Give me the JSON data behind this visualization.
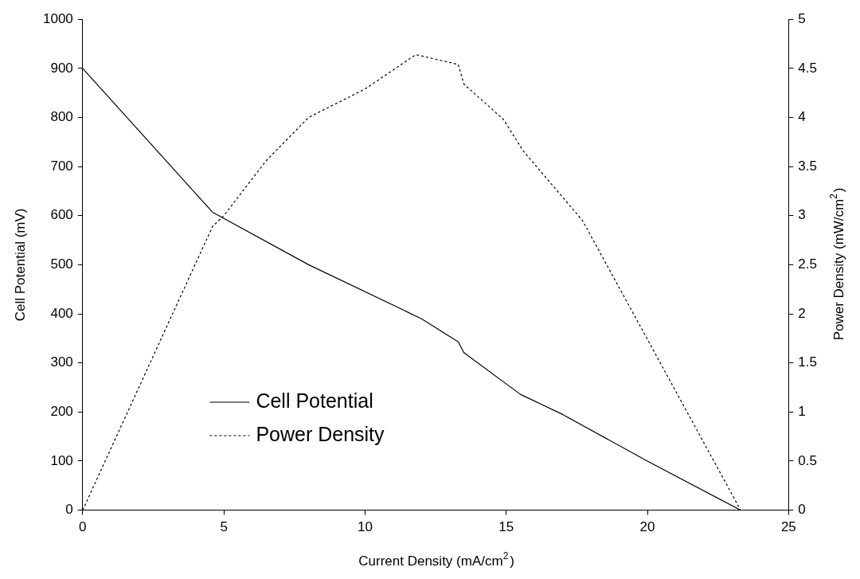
{
  "chart_data": {
    "type": "line",
    "xlabel": "Current Density (mA/cm$^{2}$)",
    "ylabel": "Cell Potential (mV)",
    "y2label": "Power Density (mW/cm$^{2}$)",
    "xlim": [
      0,
      25
    ],
    "xticks": [
      0,
      5,
      10,
      15,
      20,
      25
    ],
    "ylim": [
      0,
      1000
    ],
    "yticks": [
      0,
      100,
      200,
      300,
      400,
      500,
      600,
      700,
      800,
      900,
      1000
    ],
    "y2lim": [
      0,
      5
    ],
    "y2ticks": [
      0,
      0.5,
      1,
      1.5,
      2,
      2.5,
      3,
      3.5,
      4,
      4.5,
      5
    ],
    "grid": false,
    "legend": "bottom left",
    "marker": "none",
    "series": [
      {
        "name": "Cell Potential",
        "color": "#000000",
        "line_style": "solid",
        "x": [
          0,
          4.6,
          8,
          12,
          13.3,
          13.5,
          15.5,
          17,
          20,
          23.3
        ],
        "values": [
          900,
          607,
          500,
          390,
          343,
          321,
          236,
          195,
          100,
          0
        ]
      },
      {
        "name": "Power Density",
        "color": "#000000",
        "line_style": "dashed",
        "axis": "y2",
        "x": [
          0,
          4.6,
          5,
          6.5,
          8,
          10,
          11.8,
          13.3,
          13.5,
          14.9,
          15.6,
          17.7,
          20,
          23.3
        ],
        "values": [
          0,
          2.89,
          3.0,
          3.56,
          4.0,
          4.29,
          4.64,
          4.54,
          4.34,
          3.98,
          3.66,
          2.95,
          1.74,
          0
        ]
      }
    ]
  }
}
